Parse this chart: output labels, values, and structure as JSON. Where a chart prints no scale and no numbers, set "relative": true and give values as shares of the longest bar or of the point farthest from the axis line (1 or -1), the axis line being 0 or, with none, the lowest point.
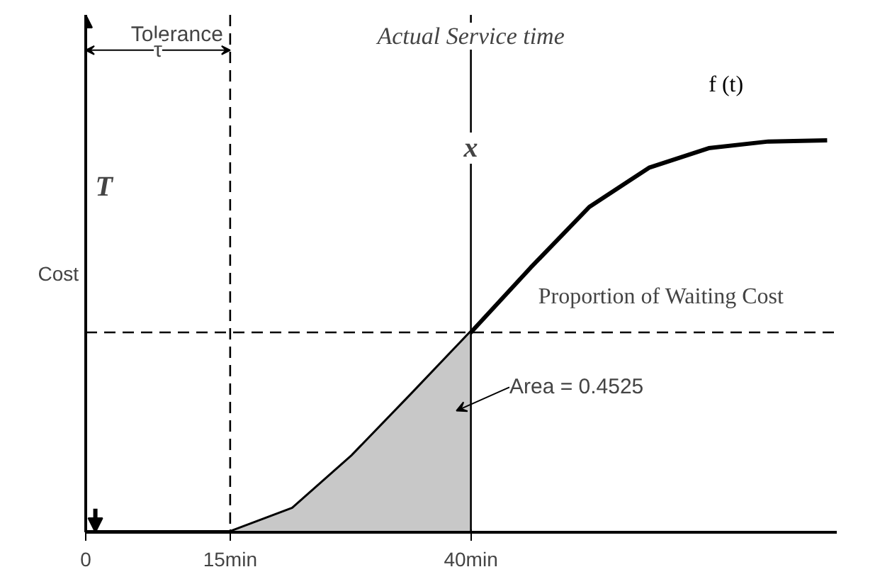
{
  "chart_data": {
    "type": "line",
    "relative": true,
    "ylabel": "Cost",
    "xlim": [
      0,
      78
    ],
    "xticks": [
      0,
      {
        "value": 15,
        "label": "15min"
      },
      {
        "value": 40,
        "label": "40min"
      }
    ],
    "tick_labels": "x",
    "grid": false,
    "marker": "none",
    "line_style": "solid",
    "series": [
      {
        "name": "f (t)",
        "color": "#000000",
        "x": [
          0,
          15,
          21.5,
          27.7,
          33.8,
          40,
          46.2,
          52.3,
          58.5,
          64.7,
          70.9,
          77
        ],
        "values": [
          0,
          0,
          0.06,
          0.195,
          0.35,
          0.51,
          0.675,
          0.83,
          0.93,
          0.98,
          0.997,
          1.0
        ]
      },
      {
        "type": "area",
        "color": "#c8c8c8",
        "x": [
          15,
          21.5,
          27.7,
          33.8,
          40
        ],
        "values": [
          0,
          0.06,
          0.195,
          0.35,
          0.51
        ]
      }
    ],
    "ref_lines": [
      {
        "axis": "x",
        "value": 15,
        "label": "Tolerance",
        "line_style": "dashed",
        "color": "#000000"
      },
      {
        "axis": "x",
        "value": 40,
        "label": "x",
        "line_style": "solid",
        "color": "#000000"
      },
      {
        "axis": "y",
        "value": 0.51,
        "label": null,
        "line_style": "dashed",
        "color": "#000000"
      }
    ],
    "annotations": [
      "τ",
      "Actual Service time",
      "T",
      "Proportion of Waiting Cost",
      "Area = 0.4525"
    ]
  }
}
